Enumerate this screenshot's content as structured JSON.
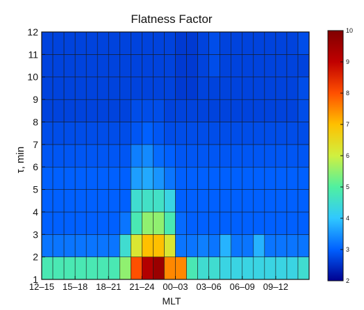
{
  "chart_data": {
    "type": "heatmap",
    "title": "Flatness Factor",
    "xlabel": "MLT",
    "ylabel": "τ, min",
    "x_tick_labels": [
      "12–15",
      "15–18",
      "18–21",
      "21–24",
      "00–03",
      "03–06",
      "06–09",
      "09–12"
    ],
    "y_tick_labels": [
      "1",
      "2",
      "3",
      "4",
      "5",
      "6",
      "7",
      "8",
      "9",
      "10",
      "11",
      "12"
    ],
    "n_columns": 24,
    "n_rows": 11,
    "colorbar": {
      "min": 2,
      "max": 10,
      "tick_labels": [
        "2",
        "3",
        "4",
        "5",
        "6",
        "7",
        "8",
        "9",
        "10"
      ]
    },
    "colormap": [
      "#00008f",
      "#0060ff",
      "#30c8ff",
      "#50f0a0",
      "#d0f040",
      "#ffc000",
      "#ff5000",
      "#c00000",
      "#800000"
    ],
    "values": [
      [
        4.8,
        4.8,
        4.8,
        4.8,
        4.8,
        4.8,
        4.8,
        5.5,
        8.0,
        9.2,
        9.6,
        7.5,
        7.5,
        4.8,
        4.5,
        4.5,
        4.3,
        4.3,
        4.3,
        4.3,
        4.3,
        4.3,
        4.3,
        4.5
      ],
      [
        3.2,
        3.2,
        3.2,
        3.2,
        3.2,
        3.2,
        3.2,
        4.5,
        6.2,
        7.0,
        7.0,
        6.2,
        3.2,
        3.2,
        3.3,
        3.2,
        3.8,
        3.2,
        3.2,
        3.8,
        3.2,
        3.2,
        3.2,
        3.2
      ],
      [
        3.0,
        3.0,
        3.0,
        3.0,
        3.0,
        3.0,
        3.0,
        3.2,
        4.8,
        5.5,
        5.5,
        4.8,
        3.1,
        3.0,
        3.0,
        3.0,
        3.0,
        3.0,
        3.0,
        3.0,
        3.0,
        3.0,
        3.0,
        3.0
      ],
      [
        3.0,
        3.0,
        3.0,
        3.0,
        3.0,
        3.0,
        3.0,
        3.0,
        4.5,
        4.6,
        4.6,
        4.3,
        3.0,
        3.0,
        3.0,
        3.0,
        3.0,
        3.0,
        3.0,
        3.0,
        3.0,
        3.0,
        3.0,
        3.0
      ],
      [
        3.0,
        3.0,
        3.0,
        3.0,
        3.0,
        3.0,
        3.0,
        3.0,
        3.6,
        3.7,
        3.5,
        3.2,
        3.0,
        3.0,
        3.0,
        3.0,
        3.0,
        3.0,
        3.0,
        3.0,
        3.0,
        3.0,
        3.0,
        3.0
      ],
      [
        2.9,
        2.9,
        2.9,
        2.9,
        2.9,
        2.9,
        2.9,
        2.9,
        3.3,
        3.4,
        3.1,
        3.0,
        2.9,
        2.9,
        2.9,
        2.9,
        2.9,
        2.9,
        2.9,
        2.9,
        2.9,
        2.9,
        2.9,
        2.9
      ],
      [
        2.8,
        2.8,
        2.8,
        2.8,
        2.8,
        2.8,
        2.8,
        2.8,
        2.9,
        3.0,
        2.9,
        2.8,
        2.8,
        2.8,
        2.8,
        2.8,
        2.8,
        2.8,
        2.8,
        2.8,
        2.8,
        2.8,
        2.8,
        2.8
      ],
      [
        2.7,
        2.7,
        2.7,
        2.7,
        2.7,
        2.7,
        2.7,
        2.7,
        2.8,
        2.8,
        2.8,
        2.7,
        2.7,
        2.7,
        2.7,
        2.7,
        2.7,
        2.7,
        2.7,
        2.7,
        2.7,
        2.7,
        2.7,
        2.8
      ],
      [
        2.7,
        2.7,
        2.7,
        2.7,
        2.7,
        2.7,
        2.7,
        2.7,
        2.7,
        2.7,
        2.7,
        2.7,
        2.6,
        2.6,
        2.7,
        2.7,
        2.7,
        2.7,
        2.7,
        2.7,
        2.7,
        2.7,
        2.7,
        2.8
      ],
      [
        2.7,
        2.7,
        2.7,
        2.7,
        2.7,
        2.7,
        2.7,
        2.7,
        2.7,
        2.7,
        2.7,
        2.7,
        2.6,
        2.6,
        2.7,
        2.8,
        2.7,
        2.7,
        2.7,
        2.7,
        2.7,
        2.7,
        2.7,
        2.7
      ],
      [
        2.7,
        2.7,
        2.7,
        2.7,
        2.7,
        2.7,
        2.7,
        2.7,
        2.7,
        2.7,
        2.7,
        2.7,
        2.6,
        2.6,
        2.7,
        2.8,
        2.7,
        2.7,
        2.7,
        2.7,
        2.7,
        2.7,
        2.7,
        2.8
      ]
    ]
  }
}
